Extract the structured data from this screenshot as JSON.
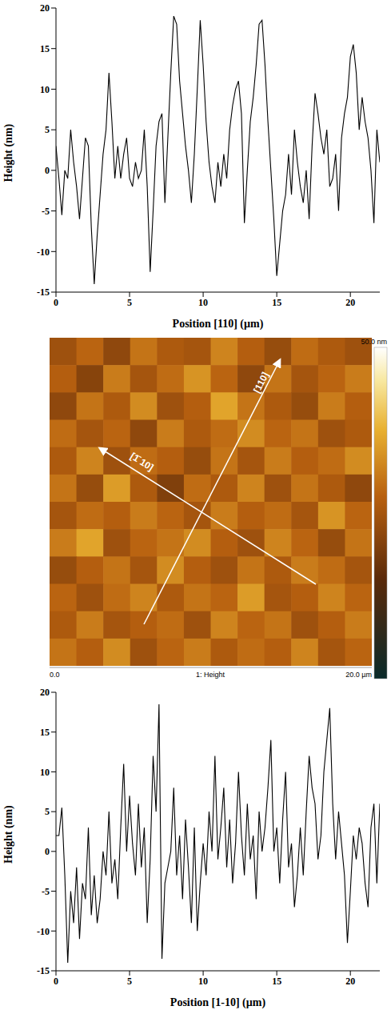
{
  "chart_data": [
    {
      "type": "line",
      "x_label": "Position [110] (µm)",
      "y_label": "Height (nm)",
      "x": [
        0,
        0.2,
        0.4,
        0.6,
        0.8,
        1.0,
        1.2,
        1.4,
        1.6,
        1.8,
        2.0,
        2.2,
        2.4,
        2.6,
        2.8,
        3.0,
        3.2,
        3.4,
        3.6,
        3.8,
        4.0,
        4.2,
        4.4,
        4.6,
        4.8,
        5.0,
        5.2,
        5.4,
        5.6,
        5.8,
        6.0,
        6.2,
        6.4,
        6.6,
        6.8,
        7.0,
        7.2,
        7.4,
        7.6,
        7.8,
        8.0,
        8.2,
        8.4,
        8.6,
        8.8,
        9.0,
        9.2,
        9.4,
        9.6,
        9.8,
        10.0,
        10.2,
        10.4,
        10.6,
        10.8,
        11.0,
        11.2,
        11.4,
        11.6,
        11.8,
        12.0,
        12.2,
        12.4,
        12.6,
        12.8,
        13.0,
        13.2,
        13.4,
        13.6,
        13.8,
        14.0,
        14.2,
        14.4,
        14.6,
        14.8,
        15.0,
        15.2,
        15.4,
        15.6,
        15.8,
        16.0,
        16.2,
        16.4,
        16.6,
        16.8,
        17.0,
        17.2,
        17.4,
        17.6,
        17.8,
        18.0,
        18.2,
        18.4,
        18.6,
        18.8,
        19.0,
        19.2,
        19.4,
        19.6,
        19.8,
        20.0,
        20.2,
        20.4,
        20.6,
        20.8,
        21.0,
        21.2,
        21.4,
        21.6,
        21.8,
        22.0
      ],
      "values": [
        3,
        -1,
        -5.5,
        0,
        -1,
        5,
        1,
        -2,
        -6,
        -1,
        4,
        3,
        -7,
        -14,
        -8,
        -3,
        2,
        5,
        12,
        6,
        -1,
        3,
        -1,
        2,
        4,
        -1,
        -2,
        1,
        -1,
        0,
        5,
        -2,
        -12.5,
        -5,
        3,
        6,
        7,
        -4,
        4,
        12,
        19,
        18,
        11,
        7,
        3,
        0,
        -4,
        2,
        10,
        18.5,
        13,
        6,
        1,
        -2,
        -4,
        1,
        -2,
        2,
        -1,
        5,
        8,
        10,
        11,
        7,
        -6.5,
        0,
        6,
        9,
        13,
        18,
        18.5,
        13,
        6,
        0,
        -6,
        -13,
        -9,
        -5,
        -3,
        2,
        -3,
        5,
        1,
        -2,
        -4,
        0,
        -6,
        3,
        9.5,
        7,
        4,
        2,
        5,
        -2,
        -1,
        2,
        -5,
        4,
        7,
        9,
        14,
        15.5,
        12,
        5,
        9,
        6,
        4,
        0,
        -6.5,
        5,
        1
      ],
      "color": "#000000",
      "xlim": [
        0,
        22
      ],
      "xticks": [
        0,
        5,
        10,
        15,
        20
      ],
      "ylim": [
        -15,
        20
      ],
      "yticks": [
        -15,
        -10,
        -5,
        0,
        5,
        10,
        15,
        20
      ],
      "grid": false
    },
    {
      "type": "heatmap",
      "x_label": "1: Height",
      "x_range_labels": [
        "0.0",
        "20.0 µm"
      ],
      "colorbar_label": "50.0 nm",
      "colorbar_range": [
        0,
        50
      ],
      "annotations": [
        "[1̄ 10]",
        "[110]"
      ],
      "cells": [
        [
          24,
          28,
          22,
          30,
          26,
          25,
          32,
          27,
          23,
          29,
          26,
          24
        ],
        [
          27,
          21,
          31,
          25,
          29,
          34,
          28,
          22,
          30,
          25,
          28,
          31
        ],
        [
          22,
          30,
          26,
          33,
          24,
          27,
          36,
          30,
          26,
          23,
          31,
          27
        ],
        [
          29,
          25,
          28,
          22,
          31,
          26,
          29,
          33,
          28,
          30,
          24,
          26
        ],
        [
          26,
          32,
          24,
          29,
          27,
          23,
          30,
          25,
          31,
          27,
          29,
          33
        ],
        [
          30,
          23,
          35,
          26,
          20,
          29,
          26,
          32,
          24,
          30,
          26,
          22
        ],
        [
          25,
          29,
          27,
          31,
          28,
          25,
          31,
          27,
          29,
          25,
          34,
          28
        ],
        [
          31,
          36,
          24,
          28,
          30,
          33,
          27,
          24,
          32,
          28,
          23,
          30
        ],
        [
          23,
          27,
          30,
          25,
          33,
          27,
          24,
          30,
          26,
          31,
          29,
          25
        ],
        [
          28,
          24,
          29,
          32,
          26,
          30,
          28,
          35,
          25,
          27,
          32,
          28
        ],
        [
          26,
          31,
          25,
          27,
          29,
          24,
          32,
          28,
          30,
          24,
          27,
          31
        ],
        [
          30,
          27,
          33,
          24,
          28,
          31,
          26,
          29,
          27,
          32,
          25,
          28
        ]
      ]
    },
    {
      "type": "line",
      "x_label": "Position [1-10] (µm)",
      "y_label": "Height (nm)",
      "x": [
        0,
        0.2,
        0.4,
        0.6,
        0.8,
        1.0,
        1.2,
        1.4,
        1.6,
        1.8,
        2.0,
        2.2,
        2.4,
        2.6,
        2.8,
        3.0,
        3.2,
        3.4,
        3.6,
        3.8,
        4.0,
        4.2,
        4.4,
        4.6,
        4.8,
        5.0,
        5.2,
        5.4,
        5.6,
        5.8,
        6.0,
        6.2,
        6.4,
        6.6,
        6.8,
        7.0,
        7.2,
        7.4,
        7.6,
        7.8,
        8.0,
        8.2,
        8.4,
        8.6,
        8.8,
        9.0,
        9.2,
        9.4,
        9.6,
        9.8,
        10.0,
        10.2,
        10.4,
        10.6,
        10.8,
        11.0,
        11.2,
        11.4,
        11.6,
        11.8,
        12.0,
        12.2,
        12.4,
        12.6,
        12.8,
        13.0,
        13.2,
        13.4,
        13.6,
        13.8,
        14.0,
        14.2,
        14.4,
        14.6,
        14.8,
        15.0,
        15.2,
        15.4,
        15.6,
        15.8,
        16.0,
        16.2,
        16.4,
        16.6,
        16.8,
        17.0,
        17.2,
        17.4,
        17.6,
        17.8,
        18.0,
        18.2,
        18.4,
        18.6,
        18.8,
        19.0,
        19.2,
        19.4,
        19.6,
        19.8,
        20.0,
        20.2,
        20.4,
        20.6,
        20.8,
        21.0,
        21.2,
        21.4,
        21.6,
        21.8,
        22.0
      ],
      "values": [
        2,
        2,
        5.5,
        -3,
        -14,
        -5,
        -9,
        -2,
        -11,
        -4,
        -6,
        3,
        -8,
        -3,
        -9,
        -6,
        0,
        -3,
        5,
        -4,
        -1,
        -6,
        3,
        11,
        0,
        7,
        1,
        -3,
        6,
        -2,
        3,
        -9,
        -1,
        12,
        5,
        18.5,
        -13.5,
        -4,
        -2,
        0,
        8,
        -3,
        2,
        -6,
        4,
        -2,
        -9,
        3,
        -10,
        -4,
        1,
        -3,
        5,
        0,
        12,
        -1,
        3,
        8,
        -2,
        4,
        -4,
        1,
        10,
        2,
        -3,
        6,
        -1,
        2,
        -6,
        5,
        0,
        3,
        8,
        14,
        0,
        3,
        -4,
        4,
        10,
        -2,
        1,
        -7,
        -3,
        3,
        -3,
        5,
        12,
        8,
        6,
        -1,
        2,
        10,
        14,
        18,
        6,
        -1,
        5,
        1,
        -3,
        -11.5,
        -5,
        2,
        -1,
        3,
        1,
        -4,
        -7,
        3,
        6,
        -4,
        6
      ],
      "color": "#000000",
      "xlim": [
        0,
        22
      ],
      "xticks": [
        0,
        5,
        10,
        15,
        20
      ],
      "ylim": [
        -15,
        20
      ],
      "yticks": [
        -15,
        -10,
        -5,
        0,
        5,
        10,
        15,
        20
      ],
      "grid": false
    }
  ]
}
